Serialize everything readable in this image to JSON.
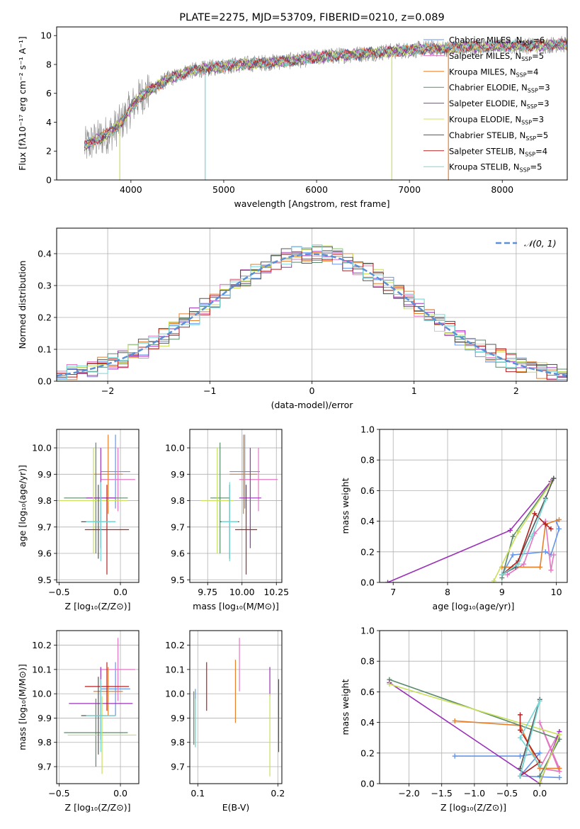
{
  "chart_data": [
    {
      "id": "spectrum",
      "type": "line",
      "title": "PLATE=2275, MJD=53709, FIBERID=0210, z=0.089",
      "xlabel": "wavelength [Angstrom, rest frame]",
      "ylabel": "Flux [fλ10⁻¹⁷ erg cm⁻² s⁻¹ A⁻¹]",
      "xlim": [
        3200,
        8700
      ],
      "ylim": [
        0,
        10.6
      ],
      "xticks": [
        4000,
        5000,
        6000,
        7000,
        8000
      ],
      "yticks": [
        0,
        2,
        4,
        6,
        8,
        10
      ],
      "grid": false,
      "legend_position": "right",
      "continuum": {
        "x": [
          3500,
          3600,
          3700,
          3800,
          3900,
          4000,
          4100,
          4200,
          4300,
          4400,
          4500,
          4600,
          4800,
          5000,
          5200,
          5400,
          5600,
          5800,
          6000,
          6200,
          6400,
          6600,
          6800,
          7000,
          7200,
          7400,
          7600,
          7800,
          8000,
          8200,
          8400,
          8600
        ],
        "y": [
          2.3,
          2.7,
          3.0,
          3.4,
          4.0,
          5.0,
          5.8,
          6.2,
          6.6,
          7.0,
          7.2,
          7.5,
          7.7,
          7.9,
          8.0,
          8.1,
          8.2,
          8.3,
          8.5,
          8.6,
          8.7,
          8.8,
          8.9,
          9.0,
          9.1,
          9.1,
          9.2,
          9.2,
          9.3,
          9.3,
          9.3,
          9.4
        ]
      },
      "series": [
        {
          "name": "Chabrier MILES, N_SSP=6",
          "label": "Chabrier MILES, N",
          "sub": "SSP",
          "suffix": "=6",
          "color": "#6495ed"
        },
        {
          "name": "Salpeter MILES, N_SSP=5",
          "label": "Salpeter MILES, N",
          "sub": "SSP",
          "suffix": "=5",
          "color": "#e377c2"
        },
        {
          "name": "Kroupa MILES, N_SSP=4",
          "label": "Kroupa MILES, N",
          "sub": "SSP",
          "suffix": "=4",
          "color": "#e8802a"
        },
        {
          "name": "Chabrier ELODIE, N_SSP=3",
          "label": "Chabrier ELODIE, N",
          "sub": "SSP",
          "suffix": "=3",
          "color": "#5a8a6a"
        },
        {
          "name": "Salpeter ELODIE, N_SSP=3",
          "label": "Salpeter ELODIE, N",
          "sub": "SSP",
          "suffix": "=3",
          "color": "#9b30b8"
        },
        {
          "name": "Kroupa ELODIE, N_SSP=3",
          "label": "Kroupa ELODIE, N",
          "sub": "SSP",
          "suffix": "=3",
          "color": "#c8e05a"
        },
        {
          "name": "Chabrier STELIB, N_SSP=5",
          "label": "Chabrier STELIB, N",
          "sub": "SSP",
          "suffix": "=5",
          "color": "#555555"
        },
        {
          "name": "Salpeter STELIB, N_SSP=4",
          "label": "Salpeter STELIB, N",
          "sub": "SSP",
          "suffix": "=4",
          "color": "#b22222"
        },
        {
          "name": "Kroupa STELIB, N_SSP=5",
          "label": "Kroupa STELIB, N",
          "sub": "SSP",
          "suffix": "=5",
          "color": "#76d7d7"
        }
      ],
      "data_color": "#888888",
      "spikes": [
        {
          "x": 3880,
          "y": 0
        },
        {
          "x": 4800,
          "y": 0
        },
        {
          "x": 6810,
          "y": 0
        },
        {
          "x": 7420,
          "y": 0
        }
      ]
    },
    {
      "id": "residuals",
      "type": "histogram",
      "xlabel": "(data-model)/error",
      "ylabel": "Normed distribution",
      "xlim": [
        -2.5,
        2.5
      ],
      "ylim": [
        0,
        0.48
      ],
      "xticks": [
        -2,
        -1,
        0,
        1,
        2
      ],
      "xtick_labels": [
        "−2",
        "−1",
        "0",
        "1",
        "2"
      ],
      "yticks": [
        0.0,
        0.1,
        0.2,
        0.3,
        0.4
      ],
      "ytick_labels": [
        "0.0",
        "0.1",
        "0.2",
        "0.3",
        "0.4"
      ],
      "grid": true,
      "bin_width": 0.1,
      "bin_start": -2.5,
      "legend_label": "𝒩(0, 1)",
      "gaussian": {
        "mean": 0,
        "sigma": 1,
        "color": "#5b8fd6"
      }
    },
    {
      "id": "age-vs-Z",
      "type": "errorbar",
      "xlabel": "Z [log₁₀(Z/Z⊙)]",
      "ylabel": "age  [log₁₀(age/yr)]",
      "xlim": [
        -0.52,
        0.15
      ],
      "ylim": [
        9.49,
        10.07
      ],
      "xticks": [
        -0.5,
        0.0
      ],
      "xtick_labels": [
        "−0.5",
        "0.0"
      ],
      "yticks": [
        9.5,
        9.6,
        9.7,
        9.8,
        9.9,
        10.0
      ],
      "ytick_labels": [
        "9.5",
        "9.6",
        "9.7",
        "9.8",
        "9.9",
        "10.0"
      ],
      "grid": true,
      "points": [
        {
          "x": -0.04,
          "y": 9.91,
          "xerr": 0.12,
          "yerr": 0.14,
          "color": "#6495ed"
        },
        {
          "x": -0.02,
          "y": 9.88,
          "xerr": 0.14,
          "yerr": 0.12,
          "color": "#e377c2"
        },
        {
          "x": -0.1,
          "y": 9.9,
          "xerr": 0.12,
          "yerr": 0.15,
          "color": "#e8802a"
        },
        {
          "x": -0.2,
          "y": 9.81,
          "xerr": 0.26,
          "yerr": 0.21,
          "color": "#5a8a6a"
        },
        {
          "x": -0.16,
          "y": 9.81,
          "xerr": 0.12,
          "yerr": 0.19,
          "color": "#9b30b8"
        },
        {
          "x": -0.22,
          "y": 9.8,
          "xerr": 0.28,
          "yerr": 0.2,
          "color": "#c8e05a"
        },
        {
          "x": -0.18,
          "y": 9.72,
          "xerr": 0.14,
          "yerr": 0.14,
          "color": "#555555"
        },
        {
          "x": -0.11,
          "y": 9.69,
          "xerr": 0.18,
          "yerr": 0.17,
          "color": "#b22222"
        },
        {
          "x": -0.16,
          "y": 9.72,
          "xerr": 0.12,
          "yerr": 0.15,
          "color": "#76d7d7"
        }
      ]
    },
    {
      "id": "age-vs-mass",
      "type": "errorbar",
      "xlabel": "mass [log₁₀(M/M⊙)]",
      "ylabel": "",
      "xlim": [
        9.62,
        10.29
      ],
      "ylim": [
        9.49,
        10.07
      ],
      "xticks": [
        9.75,
        10.0,
        10.25
      ],
      "xtick_labels": [
        "9.75",
        "10.00",
        "10.25"
      ],
      "yticks": [
        9.5,
        9.6,
        9.7,
        9.8,
        9.9,
        10.0
      ],
      "ytick_labels": [
        "9.5",
        "9.6",
        "9.7",
        "9.8",
        "9.9",
        "10.0"
      ],
      "grid": true,
      "points": [
        {
          "x": 10.02,
          "y": 9.91,
          "xerr": 0.11,
          "yerr": 0.14,
          "color": "#6495ed"
        },
        {
          "x": 10.12,
          "y": 9.88,
          "xerr": 0.14,
          "yerr": 0.12,
          "color": "#e377c2"
        },
        {
          "x": 10.01,
          "y": 9.9,
          "xerr": 0.1,
          "yerr": 0.15,
          "color": "#e8802a"
        },
        {
          "x": 9.84,
          "y": 9.81,
          "xerr": 0.07,
          "yerr": 0.21,
          "color": "#5a8a6a"
        },
        {
          "x": 10.06,
          "y": 9.81,
          "xerr": 0.08,
          "yerr": 0.19,
          "color": "#9b30b8"
        },
        {
          "x": 9.82,
          "y": 9.8,
          "xerr": 0.12,
          "yerr": 0.2,
          "color": "#c8e05a"
        },
        {
          "x": 9.91,
          "y": 9.72,
          "xerr": 0.07,
          "yerr": 0.14,
          "color": "#555555"
        },
        {
          "x": 10.03,
          "y": 9.69,
          "xerr": 0.08,
          "yerr": 0.17,
          "color": "#b22222"
        },
        {
          "x": 9.91,
          "y": 9.72,
          "xerr": 0.06,
          "yerr": 0.15,
          "color": "#76d7d7"
        }
      ]
    },
    {
      "id": "massweight-vs-age",
      "type": "line",
      "xlabel": "age  [log₁₀(age/yr)]",
      "ylabel": "mass weight",
      "xlim": [
        6.75,
        10.2
      ],
      "ylim": [
        0,
        1.0
      ],
      "xticks": [
        7,
        8,
        9,
        10
      ],
      "xtick_labels": [
        "7",
        "8",
        "9",
        "10"
      ],
      "yticks": [
        0.0,
        0.2,
        0.4,
        0.6,
        0.8,
        1.0
      ],
      "ytick_labels": [
        "0.0",
        "0.2",
        "0.4",
        "0.6",
        "0.8",
        "1.0"
      ],
      "grid": true,
      "series": [
        {
          "color": "#6495ed",
          "x": [
            9.0,
            9.2,
            9.8,
            9.9,
            10.05,
            10.0
          ],
          "y": [
            0.05,
            0.18,
            0.2,
            0.18,
            0.35,
            0.4
          ]
        },
        {
          "color": "#e377c2",
          "x": [
            9.1,
            9.4,
            9.6,
            9.8,
            9.9,
            9.95
          ],
          "y": [
            0.05,
            0.12,
            0.32,
            0.4,
            0.08,
            0.18
          ]
        },
        {
          "color": "#e8802a",
          "x": [
            9.0,
            9.2,
            9.7,
            9.8,
            10.05
          ],
          "y": [
            0.1,
            0.1,
            0.1,
            0.38,
            0.41
          ]
        },
        {
          "color": "#5a8a6a",
          "x": [
            9.0,
            9.2,
            9.95
          ],
          "y": [
            0.03,
            0.3,
            0.68
          ]
        },
        {
          "color": "#9b30b8",
          "x": [
            6.9,
            9.15,
            9.9
          ],
          "y": [
            0.0,
            0.34,
            0.66
          ]
        },
        {
          "color": "#c8e05a",
          "x": [
            8.85,
            9.3,
            9.9
          ],
          "y": [
            0.01,
            0.33,
            0.65
          ]
        },
        {
          "color": "#555555",
          "x": [
            9.0,
            9.25,
            9.8,
            9.95
          ],
          "y": [
            0.05,
            0.1,
            0.55,
            0.68
          ]
        },
        {
          "color": "#b22222",
          "x": [
            9.0,
            9.3,
            9.6,
            9.8,
            9.9
          ],
          "y": [
            0.05,
            0.14,
            0.45,
            0.38,
            0.35
          ]
        },
        {
          "color": "#76d7d7",
          "x": [
            9.0,
            9.3,
            9.55,
            9.8
          ],
          "y": [
            0.05,
            0.12,
            0.3,
            0.54
          ]
        }
      ]
    },
    {
      "id": "mass-vs-Z",
      "type": "errorbar",
      "xlabel": "Z [log₁₀(Z/Z⊙)]",
      "ylabel": "mass [log₁₀(M/M⊙)]",
      "xlim": [
        -0.52,
        0.15
      ],
      "ylim": [
        9.63,
        10.26
      ],
      "xticks": [
        -0.5,
        0.0
      ],
      "xtick_labels": [
        "−0.5",
        "0.0"
      ],
      "yticks": [
        9.7,
        9.8,
        9.9,
        10.0,
        10.1,
        10.2
      ],
      "ytick_labels": [
        "9.7",
        "9.8",
        "9.9",
        "10.0",
        "10.1",
        "10.2"
      ],
      "grid": true,
      "points": [
        {
          "x": -0.04,
          "y": 10.02,
          "xerr": 0.12,
          "yerr": 0.11,
          "color": "#6495ed"
        },
        {
          "x": -0.02,
          "y": 10.1,
          "xerr": 0.14,
          "yerr": 0.13,
          "color": "#e377c2"
        },
        {
          "x": -0.1,
          "y": 10.01,
          "xerr": 0.12,
          "yerr": 0.1,
          "color": "#e8802a"
        },
        {
          "x": -0.2,
          "y": 9.84,
          "xerr": 0.26,
          "yerr": 0.14,
          "color": "#5a8a6a"
        },
        {
          "x": -0.16,
          "y": 9.96,
          "xerr": 0.26,
          "yerr": 0.15,
          "color": "#9b30b8"
        },
        {
          "x": -0.15,
          "y": 9.83,
          "xerr": 0.28,
          "yerr": 0.16,
          "color": "#c8e05a"
        },
        {
          "x": -0.18,
          "y": 9.91,
          "xerr": 0.14,
          "yerr": 0.16,
          "color": "#555555"
        },
        {
          "x": -0.11,
          "y": 10.03,
          "xerr": 0.18,
          "yerr": 0.1,
          "color": "#b22222"
        },
        {
          "x": -0.16,
          "y": 9.91,
          "xerr": 0.12,
          "yerr": 0.15,
          "color": "#76d7d7"
        }
      ]
    },
    {
      "id": "mass-vs-ebv",
      "type": "errorbar",
      "xlabel": "E(B-V)",
      "ylabel": "",
      "xlim": [
        0.09,
        0.205
      ],
      "ylim": [
        9.63,
        10.26
      ],
      "xticks": [
        0.1,
        0.2
      ],
      "xtick_labels": [
        "0.1",
        "0.2"
      ],
      "yticks": [
        9.7,
        9.8,
        9.9,
        10.0,
        10.1,
        10.2
      ],
      "ytick_labels": [
        "9.7",
        "9.8",
        "9.9",
        "10.0",
        "10.1",
        "10.2"
      ],
      "grid": true,
      "points": [
        {
          "x": 0.097,
          "y": 9.9,
          "xerr": 0,
          "yerr": 0.12,
          "color": "#6495ed"
        },
        {
          "x": 0.152,
          "y": 10.12,
          "xerr": 0,
          "yerr": 0.11,
          "color": "#e377c2"
        },
        {
          "x": 0.147,
          "y": 10.01,
          "xerr": 0,
          "yerr": 0.13,
          "color": "#e8802a"
        },
        {
          "x": 0.095,
          "y": 9.9,
          "xerr": 0,
          "yerr": 0.11,
          "color": "#5a8a6a"
        },
        {
          "x": 0.19,
          "y": 10.05,
          "xerr": 0,
          "yerr": 0.06,
          "color": "#9b30b8"
        },
        {
          "x": 0.19,
          "y": 9.83,
          "xerr": 0,
          "yerr": 0.17,
          "color": "#c8e05a"
        },
        {
          "x": 0.201,
          "y": 9.91,
          "xerr": 0,
          "yerr": 0.15,
          "color": "#555555"
        },
        {
          "x": 0.111,
          "y": 10.03,
          "xerr": 0,
          "yerr": 0.1,
          "color": "#b22222"
        },
        {
          "x": 0.097,
          "y": 9.88,
          "xerr": 0,
          "yerr": 0.1,
          "color": "#76d7d7"
        }
      ]
    },
    {
      "id": "massweight-vs-Z",
      "type": "line",
      "xlabel": "Z [log₁₀(Z/Z⊙)]",
      "ylabel": "mass weight",
      "xlim": [
        -2.45,
        0.42
      ],
      "ylim": [
        0,
        1.0
      ],
      "xticks": [
        -2.0,
        -1.5,
        -1.0,
        -0.5,
        0.0
      ],
      "xtick_labels": [
        "−2.0",
        "−1.5",
        "−1.0",
        "−0.5",
        "0.0"
      ],
      "yticks": [
        0.0,
        0.2,
        0.4,
        0.6,
        0.8,
        1.0
      ],
      "ytick_labels": [
        "0.0",
        "0.2",
        "0.4",
        "0.6",
        "0.8",
        "1.0"
      ],
      "grid": true,
      "series": [
        {
          "color": "#6495ed",
          "x": [
            -1.3,
            -0.3,
            0.0,
            -0.3,
            0.3
          ],
          "y": [
            0.18,
            0.18,
            0.2,
            0.05,
            0.04
          ]
        },
        {
          "color": "#e377c2",
          "x": [
            0.3,
            0.0,
            0.3,
            0.0,
            0.3
          ],
          "y": [
            0.34,
            0.1,
            0.08,
            0.4,
            0.1
          ]
        },
        {
          "color": "#e8802a",
          "x": [
            -1.3,
            -0.3,
            0.0,
            0.3
          ],
          "y": [
            0.41,
            0.38,
            0.1,
            0.1
          ]
        },
        {
          "color": "#5a8a6a",
          "x": [
            -2.3,
            0.3,
            0.0
          ],
          "y": [
            0.68,
            0.29,
            0.05
          ]
        },
        {
          "color": "#9b30b8",
          "x": [
            -2.3,
            0.0,
            0.3
          ],
          "y": [
            0.66,
            0.0,
            0.34
          ]
        },
        {
          "color": "#c8e05a",
          "x": [
            -2.3,
            0.3,
            0.0
          ],
          "y": [
            0.65,
            0.32,
            0.01
          ]
        },
        {
          "color": "#555555",
          "x": [
            -0.3,
            0.0,
            -0.3
          ],
          "y": [
            0.05,
            0.55,
            0.1
          ]
        },
        {
          "color": "#b22222",
          "x": [
            -0.3,
            -0.3,
            0.0,
            -0.3
          ],
          "y": [
            0.45,
            0.35,
            0.14,
            0.05
          ]
        },
        {
          "color": "#76d7d7",
          "x": [
            -0.3,
            0.0,
            -0.3,
            0.0
          ],
          "y": [
            0.05,
            0.54,
            0.3,
            0.12
          ]
        }
      ]
    }
  ]
}
